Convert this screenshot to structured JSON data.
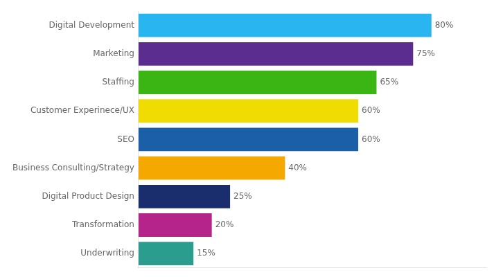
{
  "chart_data": {
    "type": "bar",
    "orientation": "horizontal",
    "categories": [
      "Underwriting",
      "Transformation",
      "Digital Product Design",
      "Business Consulting/Strategy",
      "SEO",
      "Customer Experinece/UX",
      "Staffing",
      "Marketing",
      "Digital Development"
    ],
    "values": [
      15,
      20,
      25,
      40,
      60,
      60,
      65,
      75,
      80
    ],
    "value_labels": [
      "15%",
      "20%",
      "25%",
      "40%",
      "60%",
      "60%",
      "65%",
      "75%",
      "80%"
    ],
    "colors": [
      "#2a9d8f",
      "#b5248a",
      "#1a2e6e",
      "#f5a800",
      "#1a5fa8",
      "#f0dc00",
      "#3ab514",
      "#5b2d8e",
      "#29b5f0"
    ],
    "xlim": [
      0,
      95
    ],
    "data_labels": true,
    "tick_labels": "y",
    "grid": false
  }
}
